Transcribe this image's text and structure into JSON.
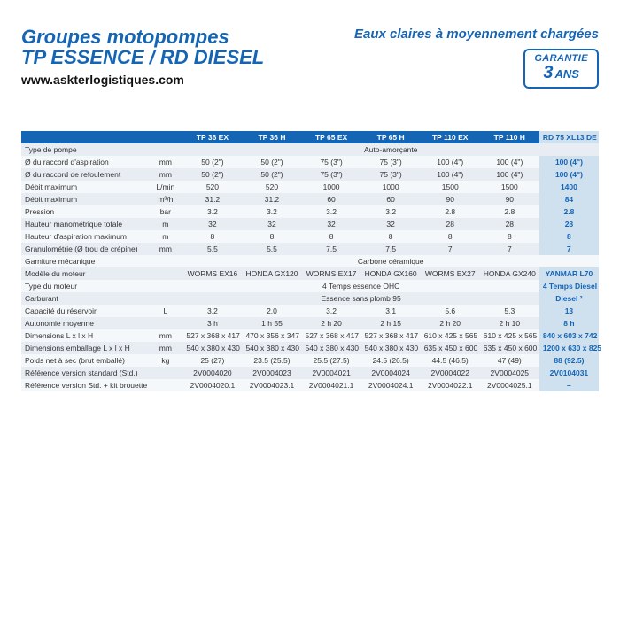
{
  "header": {
    "title_line1": "Groupes motopompes",
    "title_line2": "TP ESSENCE / RD DIESEL",
    "url": "www.askterlogistiques.com",
    "tagline": "Eaux claires à moyennement chargées",
    "badge_top": "GARANTIE",
    "badge_num": "3",
    "badge_unit": "ANS"
  },
  "style": {
    "title_color": "#1565b5",
    "title_fontsize": 22,
    "url_color": "#111111",
    "url_fontsize": 14,
    "tagline_color": "#1565b5",
    "tagline_fontsize": 15,
    "table_fontsize": 8.5,
    "header_bg": "#1565b5",
    "header_fg": "#ffffff",
    "rd_bg": "#cfe0ef",
    "rd_fg": "#1565b5",
    "row_odd_bg": "#e7edf3",
    "row_even_bg": "#f5f8fb"
  },
  "table": {
    "columns": [
      "TP 36 EX",
      "TP 36 H",
      "TP 65 EX",
      "TP 65 H",
      "TP 110 EX",
      "TP 110 H",
      "RD 75 XL13 DE"
    ],
    "rows": [
      {
        "label": "Type de pompe",
        "unit": "",
        "merged": "Auto-amorçante"
      },
      {
        "label": "Ø du raccord d'aspiration",
        "unit": "mm",
        "vals": [
          "50 (2\")",
          "50 (2\")",
          "75 (3\")",
          "75 (3\")",
          "100 (4\")",
          "100 (4\")",
          "100 (4\")"
        ]
      },
      {
        "label": "Ø du raccord de refoulement",
        "unit": "mm",
        "vals": [
          "50 (2\")",
          "50 (2\")",
          "75 (3\")",
          "75 (3\")",
          "100 (4\")",
          "100 (4\")",
          "100 (4\")"
        ]
      },
      {
        "label": "Débit maximum",
        "unit": "L/min",
        "vals": [
          "520",
          "520",
          "1000",
          "1000",
          "1500",
          "1500",
          "1400"
        ]
      },
      {
        "label": "Débit maximum",
        "unit": "m³/h",
        "vals": [
          "31.2",
          "31.2",
          "60",
          "60",
          "90",
          "90",
          "84"
        ]
      },
      {
        "label": "Pression",
        "unit": "bar",
        "vals": [
          "3.2",
          "3.2",
          "3.2",
          "3.2",
          "2.8",
          "2.8",
          "2.8"
        ]
      },
      {
        "label": "Hauteur manométrique totale",
        "unit": "m",
        "vals": [
          "32",
          "32",
          "32",
          "32",
          "28",
          "28",
          "28"
        ]
      },
      {
        "label": "Hauteur d'aspiration maximum",
        "unit": "m",
        "vals": [
          "8",
          "8",
          "8",
          "8",
          "8",
          "8",
          "8"
        ]
      },
      {
        "label": "Granulométrie (Ø trou de crépine)",
        "unit": "mm",
        "vals": [
          "5.5",
          "5.5",
          "7.5",
          "7.5",
          "7",
          "7",
          "7"
        ]
      },
      {
        "label": "Garniture mécanique",
        "unit": "",
        "merged": "Carbone céramique"
      },
      {
        "label": "Modèle du moteur",
        "unit": "",
        "vals": [
          "WORMS EX16",
          "HONDA GX120",
          "WORMS EX17",
          "HONDA GX160",
          "WORMS EX27",
          "HONDA GX240",
          "YANMAR L70"
        ]
      },
      {
        "label": "Type du moteur",
        "unit": "",
        "merged6": "4 Temps essence OHC",
        "rd": "4 Temps Diesel"
      },
      {
        "label": "Carburant",
        "unit": "",
        "merged6": "Essence sans plomb 95",
        "rd": "Diesel ²"
      },
      {
        "label": "Capacité du réservoir",
        "unit": "L",
        "vals": [
          "3.2",
          "2.0",
          "3.2",
          "3.1",
          "5.6",
          "5.3",
          "13"
        ]
      },
      {
        "label": "Autonomie moyenne",
        "unit": "",
        "vals": [
          "3 h",
          "1 h 55",
          "2 h 20",
          "2 h 15",
          "2 h 20",
          "2 h 10",
          "8 h"
        ]
      },
      {
        "label": "Dimensions L x l x H",
        "unit": "mm",
        "vals": [
          "527 x 368 x 417",
          "470 x 356 x 347",
          "527 x 368 x 417",
          "527 x 368 x 417",
          "610 x 425 x 565",
          "610 x 425 x 565",
          "840 x 603 x 742"
        ]
      },
      {
        "label": "Dimensions emballage L x l x H",
        "unit": "mm",
        "vals": [
          "540 x 380 x 430",
          "540 x 380 x 430",
          "540 x 380 x 430",
          "540 x 380 x 430",
          "635 x 450 x 600",
          "635 x 450 x 600",
          "1200 x 630 x 825"
        ]
      },
      {
        "label": "Poids net à sec (brut emballé)",
        "unit": "kg",
        "vals": [
          "25 (27)",
          "23.5 (25.5)",
          "25.5 (27.5)",
          "24.5 (26.5)",
          "44.5 (46.5)",
          "47 (49)",
          "88 (92.5)"
        ]
      },
      {
        "label": "Référence version standard (Std.)",
        "unit": "",
        "vals": [
          "2V0004020",
          "2V0004023",
          "2V0004021",
          "2V0004024",
          "2V0004022",
          "2V0004025",
          "2V0104031"
        ]
      },
      {
        "label": "Référence version Std. + kit brouette",
        "unit": "",
        "vals": [
          "2V0004020.1",
          "2V0004023.1",
          "2V0004021.1",
          "2V0004024.1",
          "2V0004022.1",
          "2V0004025.1",
          "–"
        ]
      }
    ]
  }
}
